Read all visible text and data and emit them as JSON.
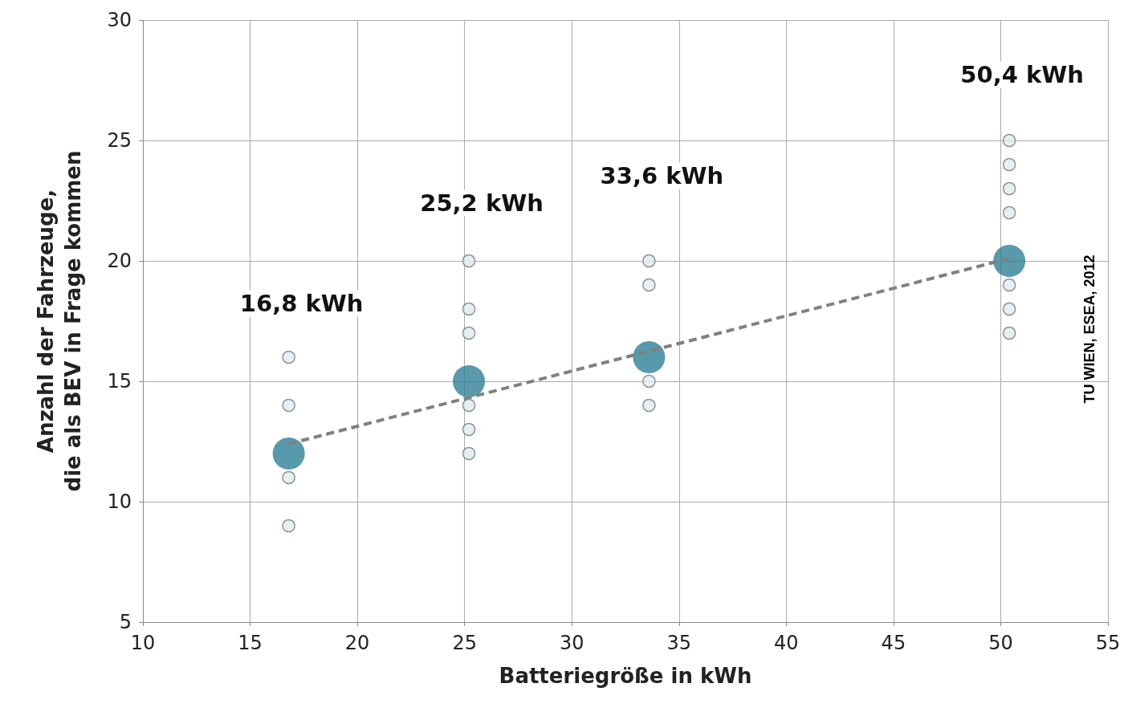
{
  "chart_data": {
    "type": "scatter",
    "xlabel": "Batteriegröße in kWh",
    "ylabel": "Anzahl der Fahrzeuge,\ndie als BEV in Frage kommen",
    "xlim": [
      10,
      55
    ],
    "xticks": [
      10,
      15,
      20,
      25,
      30,
      35,
      40,
      45,
      50,
      55
    ],
    "ylim": [
      5,
      30
    ],
    "yticks": [
      5,
      10,
      15,
      20,
      25,
      30
    ],
    "grid": true,
    "marker": "circle",
    "series": [
      {
        "color": "#dceef2",
        "x": [
          16.8,
          16.8,
          16.8,
          16.8,
          25.2,
          25.2,
          25.2,
          25.2,
          25.2,
          25.2,
          33.6,
          33.6,
          33.6,
          33.6,
          50.4,
          50.4,
          50.4,
          50.4,
          50.4,
          50.4,
          50.4
        ],
        "values": [
          16,
          14,
          11,
          9,
          20,
          18,
          17,
          14,
          13,
          12,
          20,
          19,
          15,
          14,
          25,
          24,
          23,
          22,
          19,
          18,
          17
        ]
      },
      {
        "color": "#2e7f97",
        "x": [
          16.8,
          25.2,
          33.6,
          50.4
        ],
        "values": [
          12,
          15,
          16,
          20
        ]
      },
      {
        "type": "line",
        "color": "#808080",
        "marker": "none",
        "line_style": "dashed",
        "x": [
          16.8,
          50.4
        ],
        "values": [
          12.4,
          20.1
        ]
      }
    ],
    "annotations": [
      "16,8 kWh",
      "25,2 kWh",
      "33,6 kWh",
      "50,4 kWh",
      "TU WIEN, ESEA, 2012"
    ]
  }
}
